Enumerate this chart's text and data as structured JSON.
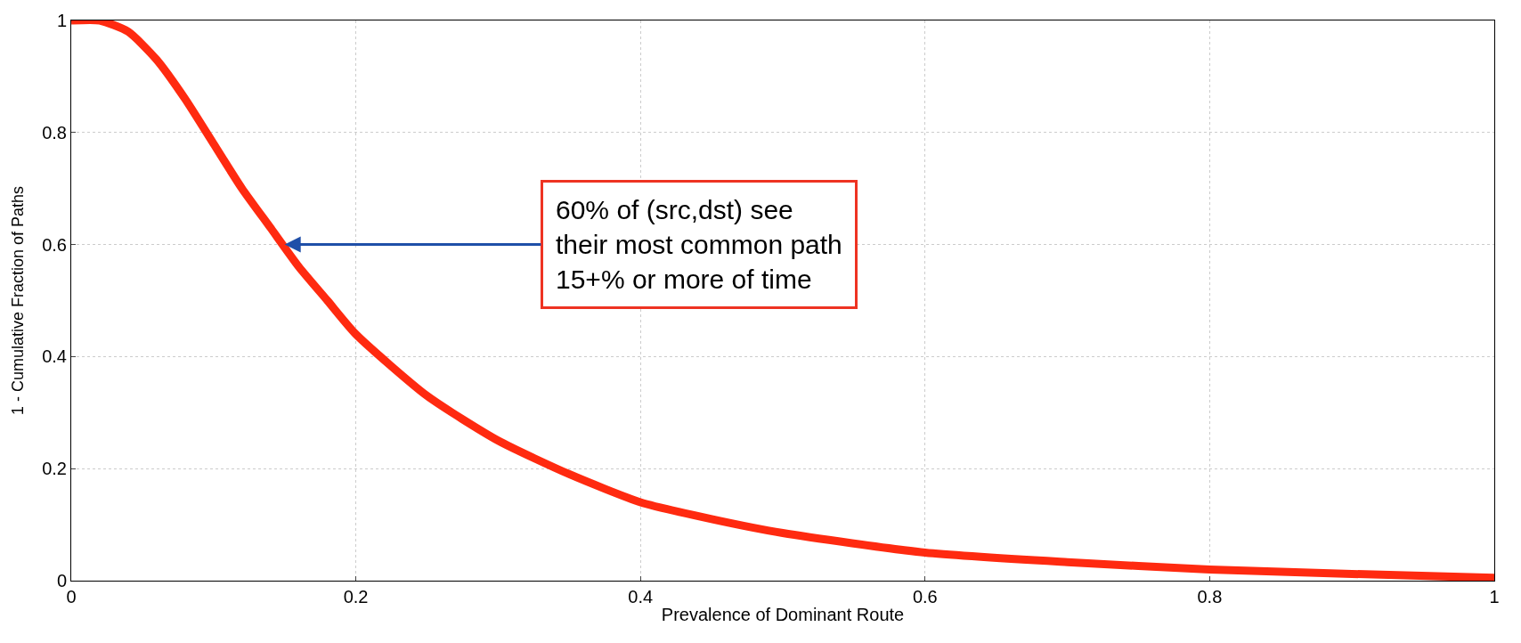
{
  "chart_data": {
    "type": "line",
    "xlabel": "Prevalence of Dominant Route",
    "ylabel": "1 - Cumulative Fraction of Paths",
    "x": [
      0,
      0.02,
      0.04,
      0.06,
      0.08,
      0.1,
      0.12,
      0.14,
      0.16,
      0.18,
      0.2,
      0.25,
      0.3,
      0.35,
      0.4,
      0.45,
      0.5,
      0.6,
      0.7,
      0.8,
      0.9,
      1.0
    ],
    "series": [
      {
        "color": "#ff2a10",
        "values": [
          1,
          1,
          0.98,
          0.93,
          0.86,
          0.78,
          0.7,
          0.63,
          0.56,
          0.5,
          0.44,
          0.33,
          0.25,
          0.19,
          0.14,
          0.11,
          0.085,
          0.05,
          0.033,
          0.02,
          0.012,
          0.005
        ]
      }
    ],
    "xlim": [
      0,
      1
    ],
    "ylim": [
      0,
      1
    ],
    "xticks": [
      0,
      0.2,
      0.4,
      0.6,
      0.8,
      1
    ],
    "yticks": [
      0,
      0.2,
      0.4,
      0.6,
      0.8,
      1
    ],
    "grid": true,
    "marker": "none",
    "line_style": "solid",
    "annotations": [
      {
        "text": "60% of (src,dst) see\ntheir most common path\n15+% or more of time",
        "x": 0.15,
        "y": 0.6
      }
    ]
  }
}
